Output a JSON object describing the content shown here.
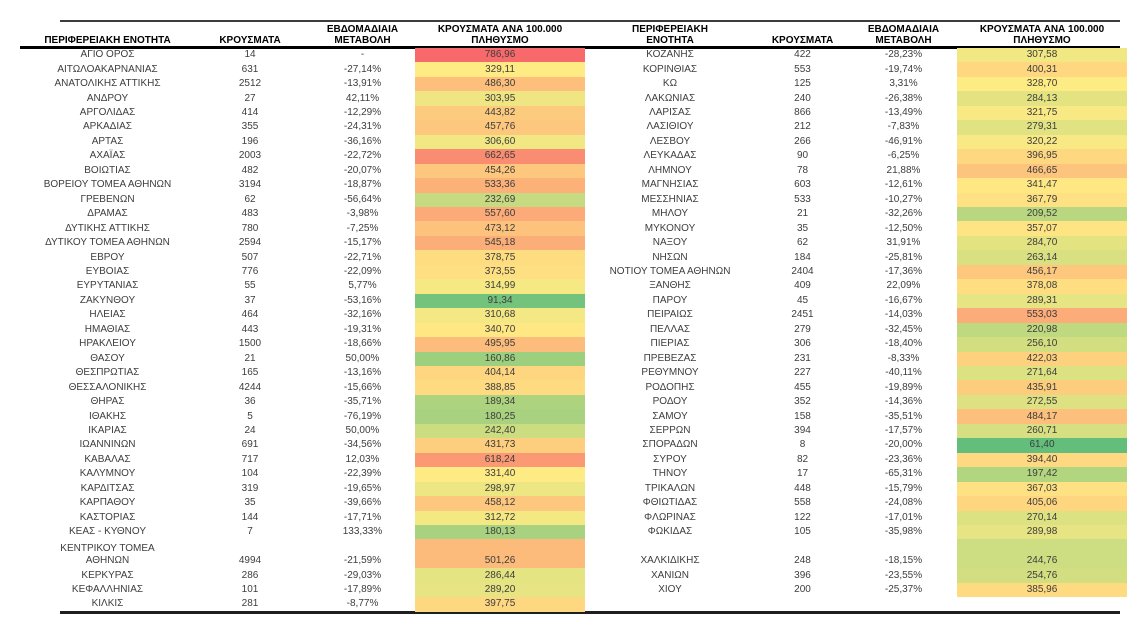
{
  "columns": {
    "region": "ΠΕΡΙΦΕΡΕΙΑΚΗ ΕΝΟΤΗΤΑ",
    "cases": "ΚΡΟΥΣΜΑΤΑ",
    "weekly_change": "ΕΒΔΟΜΑΔΙΑΙΑ ΜΕΤΑΒΟΛΗ",
    "per_100k": "ΚΡΟΥΣΜΑΤΑ ΑΝΑ 100.000 ΠΛΗΘΥΣΜΟ"
  },
  "color_scale": {
    "min_color": "#63BE7B",
    "mid_color": "#FFEB84",
    "max_color": "#F8696B"
  },
  "left_table": {
    "rows": [
      {
        "region": "ΑΓΙΟ ΟΡΟΣ",
        "cases": "14",
        "change": "-",
        "per_100k": "786,96"
      },
      {
        "region": "ΑΙΤΩΛΟΑΚΑΡΝΑΝΙΑΣ",
        "cases": "631",
        "change": "-27,14%",
        "per_100k": "329,11"
      },
      {
        "region": "ΑΝΑΤΟΛΙΚΗΣ ΑΤΤΙΚΗΣ",
        "cases": "2512",
        "change": "-13,91%",
        "per_100k": "486,30"
      },
      {
        "region": "ΑΝΔΡΟΥ",
        "cases": "27",
        "change": "42,11%",
        "per_100k": "303,95"
      },
      {
        "region": "ΑΡΓΟΛΙΔΑΣ",
        "cases": "414",
        "change": "-12,29%",
        "per_100k": "443,82"
      },
      {
        "region": "ΑΡΚΑΔΙΑΣ",
        "cases": "355",
        "change": "-24,31%",
        "per_100k": "457,76"
      },
      {
        "region": "ΑΡΤΑΣ",
        "cases": "196",
        "change": "-36,16%",
        "per_100k": "306,60"
      },
      {
        "region": "ΑΧΑΪΑΣ",
        "cases": "2003",
        "change": "-22,72%",
        "per_100k": "662,65"
      },
      {
        "region": "ΒΟΙΩΤΙΑΣ",
        "cases": "482",
        "change": "-20,07%",
        "per_100k": "454,26"
      },
      {
        "region": "ΒΟΡΕΙΟΥ ΤΟΜΕΑ ΑΘΗΝΩΝ",
        "cases": "3194",
        "change": "-18,87%",
        "per_100k": "533,36"
      },
      {
        "region": "ΓΡΕΒΕΝΩΝ",
        "cases": "62",
        "change": "-56,64%",
        "per_100k": "232,69"
      },
      {
        "region": "ΔΡΑΜΑΣ",
        "cases": "483",
        "change": "-3,98%",
        "per_100k": "557,60"
      },
      {
        "region": "ΔΥΤΙΚΗΣ ΑΤΤΙΚΗΣ",
        "cases": "780",
        "change": "-7,25%",
        "per_100k": "473,12"
      },
      {
        "region": "ΔΥΤΙΚΟΥ ΤΟΜΕΑ ΑΘΗΝΩΝ",
        "cases": "2594",
        "change": "-15,17%",
        "per_100k": "545,18"
      },
      {
        "region": "ΕΒΡΟΥ",
        "cases": "507",
        "change": "-22,71%",
        "per_100k": "378,75"
      },
      {
        "region": "ΕΥΒΟΙΑΣ",
        "cases": "776",
        "change": "-22,09%",
        "per_100k": "373,55"
      },
      {
        "region": "ΕΥΡΥΤΑΝΙΑΣ",
        "cases": "55",
        "change": "5,77%",
        "per_100k": "314,99"
      },
      {
        "region": "ΖΑΚΥΝΘΟΥ",
        "cases": "37",
        "change": "-53,16%",
        "per_100k": "91,34"
      },
      {
        "region": "ΗΛΕΙΑΣ",
        "cases": "464",
        "change": "-32,16%",
        "per_100k": "310,68"
      },
      {
        "region": "ΗΜΑΘΙΑΣ",
        "cases": "443",
        "change": "-19,31%",
        "per_100k": "340,70"
      },
      {
        "region": "ΗΡΑΚΛΕΙΟΥ",
        "cases": "1500",
        "change": "-18,66%",
        "per_100k": "495,95"
      },
      {
        "region": "ΘΑΣΟΥ",
        "cases": "21",
        "change": "50,00%",
        "per_100k": "160,86"
      },
      {
        "region": "ΘΕΣΠΡΩΤΙΑΣ",
        "cases": "165",
        "change": "-13,16%",
        "per_100k": "404,14"
      },
      {
        "region": "ΘΕΣΣΑΛΟΝΙΚΗΣ",
        "cases": "4244",
        "change": "-15,66%",
        "per_100k": "388,85"
      },
      {
        "region": "ΘΗΡΑΣ",
        "cases": "36",
        "change": "-35,71%",
        "per_100k": "189,34"
      },
      {
        "region": "ΙΘΑΚΗΣ",
        "cases": "5",
        "change": "-76,19%",
        "per_100k": "180,25"
      },
      {
        "region": "ΙΚΑΡΙΑΣ",
        "cases": "24",
        "change": "50,00%",
        "per_100k": "242,40"
      },
      {
        "region": "ΙΩΑΝΝΙΝΩΝ",
        "cases": "691",
        "change": "-34,56%",
        "per_100k": "431,73"
      },
      {
        "region": "ΚΑΒΑΛΑΣ",
        "cases": "717",
        "change": "12,03%",
        "per_100k": "618,24"
      },
      {
        "region": "ΚΑΛΥΜΝΟΥ",
        "cases": "104",
        "change": "-22,39%",
        "per_100k": "331,40"
      },
      {
        "region": "ΚΑΡΔΙΤΣΑΣ",
        "cases": "319",
        "change": "-19,65%",
        "per_100k": "298,97"
      },
      {
        "region": "ΚΑΡΠΑΘΟΥ",
        "cases": "35",
        "change": "-39,66%",
        "per_100k": "458,12"
      },
      {
        "region": "ΚΑΣΤΟΡΙΑΣ",
        "cases": "144",
        "change": "-17,71%",
        "per_100k": "312,72"
      },
      {
        "region": "ΚΕΑΣ - ΚΥΘΝΟΥ",
        "cases": "7",
        "change": "133,33%",
        "per_100k": "180,13"
      },
      {
        "region": "ΚΕΝΤΡΙΚΟΥ ΤΟΜΕΑ\nΑΘΗΝΩΝ",
        "cases": "4994",
        "change": "-21,59%",
        "per_100k": "501,26",
        "tall": true
      },
      {
        "region": "ΚΕΡΚΥΡΑΣ",
        "cases": "286",
        "change": "-29,03%",
        "per_100k": "286,44"
      },
      {
        "region": "ΚΕΦΑΛΛΗΝΙΑΣ",
        "cases": "101",
        "change": "-17,89%",
        "per_100k": "289,20"
      },
      {
        "region": "ΚΙΛΚΙΣ",
        "cases": "281",
        "change": "-8,77%",
        "per_100k": "397,75"
      }
    ]
  },
  "right_table": {
    "rows": [
      {
        "region": "ΚΟΖΑΝΗΣ",
        "cases": "422",
        "change": "-28,23%",
        "per_100k": "307,58"
      },
      {
        "region": "ΚΟΡΙΝΘΙΑΣ",
        "cases": "553",
        "change": "-19,74%",
        "per_100k": "400,31"
      },
      {
        "region": "ΚΩ",
        "cases": "125",
        "change": "3,31%",
        "per_100k": "328,70"
      },
      {
        "region": "ΛΑΚΩΝΙΑΣ",
        "cases": "240",
        "change": "-26,38%",
        "per_100k": "284,13"
      },
      {
        "region": "ΛΑΡΙΣΑΣ",
        "cases": "866",
        "change": "-13,49%",
        "per_100k": "321,75"
      },
      {
        "region": "ΛΑΣΙΘΙΟΥ",
        "cases": "212",
        "change": "-7,83%",
        "per_100k": "279,31"
      },
      {
        "region": "ΛΕΣΒΟΥ",
        "cases": "266",
        "change": "-46,91%",
        "per_100k": "320,22"
      },
      {
        "region": "ΛΕΥΚΑΔΑΣ",
        "cases": "90",
        "change": "-6,25%",
        "per_100k": "396,95"
      },
      {
        "region": "ΛΗΜΝΟΥ",
        "cases": "78",
        "change": "21,88%",
        "per_100k": "466,65"
      },
      {
        "region": "ΜΑΓΝΗΣΙΑΣ",
        "cases": "603",
        "change": "-12,61%",
        "per_100k": "341,47"
      },
      {
        "region": "ΜΕΣΣΗΝΙΑΣ",
        "cases": "533",
        "change": "-10,27%",
        "per_100k": "367,79"
      },
      {
        "region": "ΜΗΛΟΥ",
        "cases": "21",
        "change": "-32,26%",
        "per_100k": "209,52"
      },
      {
        "region": "ΜΥΚΟΝΟΥ",
        "cases": "35",
        "change": "-12,50%",
        "per_100k": "357,07"
      },
      {
        "region": "ΝΑΞΟΥ",
        "cases": "62",
        "change": "31,91%",
        "per_100k": "284,70"
      },
      {
        "region": "ΝΗΣΩΝ",
        "cases": "184",
        "change": "-25,81%",
        "per_100k": "263,14"
      },
      {
        "region": "ΝΟΤΙΟΥ ΤΟΜΕΑ ΑΘΗΝΩΝ",
        "cases": "2404",
        "change": "-17,36%",
        "per_100k": "456,17"
      },
      {
        "region": "ΞΑΝΘΗΣ",
        "cases": "409",
        "change": "22,09%",
        "per_100k": "378,08"
      },
      {
        "region": "ΠΑΡΟΥ",
        "cases": "45",
        "change": "-16,67%",
        "per_100k": "289,31"
      },
      {
        "region": "ΠΕΙΡΑΙΩΣ",
        "cases": "2451",
        "change": "-14,03%",
        "per_100k": "553,03"
      },
      {
        "region": "ΠΕΛΛΑΣ",
        "cases": "279",
        "change": "-32,45%",
        "per_100k": "220,98"
      },
      {
        "region": "ΠΙΕΡΙΑΣ",
        "cases": "306",
        "change": "-18,40%",
        "per_100k": "256,10"
      },
      {
        "region": "ΠΡΕΒΕΖΑΣ",
        "cases": "231",
        "change": "-8,33%",
        "per_100k": "422,03"
      },
      {
        "region": "ΡΕΘΥΜΝΟΥ",
        "cases": "227",
        "change": "-40,11%",
        "per_100k": "271,64"
      },
      {
        "region": "ΡΟΔΟΠΗΣ",
        "cases": "455",
        "change": "-19,89%",
        "per_100k": "435,91"
      },
      {
        "region": "ΡΟΔΟΥ",
        "cases": "352",
        "change": "-14,36%",
        "per_100k": "272,55"
      },
      {
        "region": "ΣΑΜΟΥ",
        "cases": "158",
        "change": "-35,51%",
        "per_100k": "484,17"
      },
      {
        "region": "ΣΕΡΡΩΝ",
        "cases": "394",
        "change": "-17,57%",
        "per_100k": "260,71"
      },
      {
        "region": "ΣΠΟΡΑΔΩΝ",
        "cases": "8",
        "change": "-20,00%",
        "per_100k": "61,40"
      },
      {
        "region": "ΣΥΡΟΥ",
        "cases": "82",
        "change": "-23,36%",
        "per_100k": "394,40"
      },
      {
        "region": "ΤΗΝΟΥ",
        "cases": "17",
        "change": "-65,31%",
        "per_100k": "197,42"
      },
      {
        "region": "ΤΡΙΚΑΛΩΝ",
        "cases": "448",
        "change": "-15,79%",
        "per_100k": "367,03"
      },
      {
        "region": "ΦΘΙΩΤΙΔΑΣ",
        "cases": "558",
        "change": "-24,08%",
        "per_100k": "405,06"
      },
      {
        "region": "ΦΛΩΡΙΝΑΣ",
        "cases": "122",
        "change": "-17,01%",
        "per_100k": "270,14"
      },
      {
        "region": "ΦΩΚΙΔΑΣ",
        "cases": "105",
        "change": "-35,98%",
        "per_100k": "289,98"
      },
      {
        "region": "ΧΑΛΚΙΔΙΚΗΣ",
        "cases": "248",
        "change": "-18,15%",
        "per_100k": "244,76",
        "tall": true
      },
      {
        "region": "ΧΑΝΙΩΝ",
        "cases": "396",
        "change": "-23,55%",
        "per_100k": "254,76"
      },
      {
        "region": "ΧΙΟΥ",
        "cases": "200",
        "change": "-25,37%",
        "per_100k": "385,96"
      }
    ]
  }
}
